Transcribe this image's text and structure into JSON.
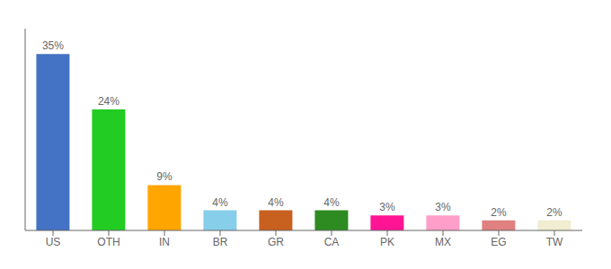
{
  "chart_data": {
    "type": "bar",
    "categories": [
      "US",
      "OTH",
      "IN",
      "BR",
      "GR",
      "CA",
      "PK",
      "MX",
      "EG",
      "TW"
    ],
    "values": [
      35,
      24,
      9,
      4,
      4,
      4,
      3,
      3,
      2,
      2
    ],
    "value_labels": [
      "35%",
      "24%",
      "9%",
      "4%",
      "4%",
      "4%",
      "3%",
      "3%",
      "2%",
      "2%"
    ],
    "data_labels": true,
    "colors": [
      "#4472C4",
      "#22CC22",
      "#FFA500",
      "#87CEEB",
      "#C86020",
      "#2E8B22",
      "#FF1493",
      "#FF9EC8",
      "#E08080",
      "#F0EDD0"
    ],
    "ylim": [
      0,
      40
    ],
    "grid": false,
    "tick_labels": "x"
  }
}
